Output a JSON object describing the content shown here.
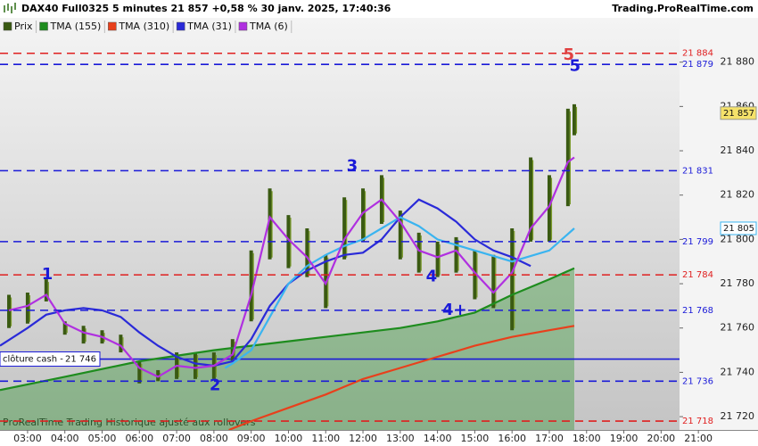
{
  "header": {
    "title": "DAX40 Full0325 5 minutes 21 857 +0,58 % 30 janv. 2025, 17:40:36",
    "source": "Trading.ProRealTime.com"
  },
  "footer": "ProRealTime Trading Historique ajusté aux rollovers",
  "chart_data": {
    "type": "range-bars",
    "xlim": [
      2.26,
      22.6
    ],
    "xticks": [
      {
        "value": 3,
        "label": "03:00"
      },
      {
        "value": 4,
        "label": "04:00"
      },
      {
        "value": 5,
        "label": "05:00"
      },
      {
        "value": 6,
        "label": "06:00"
      },
      {
        "value": 7,
        "label": "07:00"
      },
      {
        "value": 8,
        "label": "08:00"
      },
      {
        "value": 9,
        "label": "09:00"
      },
      {
        "value": 10,
        "label": "10:00"
      },
      {
        "value": 11,
        "label": "11:00"
      },
      {
        "value": 12,
        "label": "12:00"
      },
      {
        "value": 13,
        "label": "13:00"
      },
      {
        "value": 14,
        "label": "14:00"
      },
      {
        "value": 15,
        "label": "15:00"
      },
      {
        "value": 16,
        "label": "16:00"
      },
      {
        "value": 17,
        "label": "17:00"
      },
      {
        "value": 18,
        "label": "18:00"
      },
      {
        "value": 19,
        "label": "19:00"
      },
      {
        "value": 20,
        "label": "20:00"
      },
      {
        "value": 21,
        "label": "21:00"
      }
    ],
    "ylim": [
      21714,
      21900
    ],
    "yticks": [
      {
        "value": 21720,
        "label": "21 720"
      },
      {
        "value": 21740,
        "label": "21 740"
      },
      {
        "value": 21760,
        "label": "21 760"
      },
      {
        "value": 21780,
        "label": "21 780"
      },
      {
        "value": 21800,
        "label": "21 800"
      },
      {
        "value": 21820,
        "label": "21 820"
      },
      {
        "value": 21840,
        "label": "21 840"
      },
      {
        "value": 21860,
        "label": "21 860"
      },
      {
        "value": 21880,
        "label": "21 880"
      }
    ],
    "price": {
      "name": "Prix",
      "color": "#3a5a12",
      "x": [
        2.5,
        3,
        3.5,
        4,
        4.5,
        5,
        5.5,
        6,
        6.5,
        7,
        7.5,
        8,
        8.5,
        9,
        9.5,
        10,
        10.5,
        11,
        11.5,
        12,
        12.5,
        13,
        13.5,
        14,
        14.5,
        15,
        15.5,
        16,
        16.5,
        17,
        17.5,
        17.67
      ],
      "low": [
        21760,
        21762,
        21772,
        21757,
        21753,
        21753,
        21749,
        21735,
        21736,
        21737,
        21737,
        21737,
        21745,
        21763,
        21791,
        21787,
        21783,
        21769,
        21791,
        21799,
        21807,
        21791,
        21785,
        21783,
        21785,
        21773,
        21769,
        21759,
        21799,
        21799,
        21815,
        21847
      ],
      "high": [
        21775,
        21776,
        21782,
        21763,
        21761,
        21759,
        21757,
        21745,
        21741,
        21749,
        21749,
        21749,
        21755,
        21795,
        21823,
        21811,
        21805,
        21793,
        21819,
        21823,
        21829,
        21813,
        21803,
        21799,
        21801,
        21795,
        21793,
        21805,
        21837,
        21829,
        21859,
        21861
      ]
    },
    "series": [
      {
        "name": "TMA (155)",
        "color": "#1e8c1e",
        "fill": true,
        "x": [
          2.26,
          4,
          6,
          8,
          9,
          10,
          11,
          12,
          13,
          14,
          15,
          16,
          17,
          17.67
        ],
        "values": [
          21732,
          21738,
          21745,
          21750,
          21752,
          21754,
          21756,
          21758,
          21760,
          21763,
          21767,
          21775,
          21782,
          21787
        ]
      },
      {
        "name": "TMA (310)",
        "color": "#e8401c",
        "x": [
          8.4,
          9,
          10,
          11,
          12,
          13,
          14,
          15,
          16,
          17,
          17.67
        ],
        "values": [
          21714,
          21718,
          21724,
          21730,
          21737,
          21742,
          21747,
          21752,
          21756,
          21759,
          21761
        ]
      },
      {
        "name": "TMA (31)",
        "color": "#2a2ad8",
        "x": [
          2.26,
          3,
          3.5,
          4,
          4.5,
          5,
          5.5,
          6,
          6.5,
          7,
          7.5,
          8,
          8.5,
          9,
          9.5,
          10,
          10.5,
          11,
          11.5,
          12,
          12.5,
          13,
          13.5,
          14,
          14.5,
          15,
          15.5,
          16,
          16.5
        ],
        "values": [
          21752,
          21760,
          21766,
          21768,
          21769,
          21768,
          21765,
          21758,
          21752,
          21747,
          21744,
          21743,
          21745,
          21755,
          21770,
          21780,
          21786,
          21790,
          21793,
          21794,
          21800,
          21810,
          21818,
          21814,
          21808,
          21800,
          21795,
          21792,
          21788
        ]
      },
      {
        "color": "#3ab4f0",
        "x": [
          8.3,
          8.5,
          9,
          9.5,
          10,
          10.5,
          11,
          11.5,
          12,
          12.5,
          13,
          13.5,
          14,
          15,
          16,
          17,
          17.67
        ],
        "values": [
          21742,
          21744,
          21750,
          21765,
          21780,
          21788,
          21793,
          21797,
          21800,
          21805,
          21810,
          21806,
          21800,
          21795,
          21790,
          21795,
          21805
        ]
      },
      {
        "name": "TMA (6)",
        "color": "#b030e0",
        "x": [
          2.5,
          3,
          3.5,
          4,
          4.5,
          5,
          5.5,
          6,
          6.5,
          7,
          7.5,
          8,
          8.5,
          9,
          9.5,
          10,
          10.5,
          11,
          11.5,
          12,
          12.5,
          13,
          13.5,
          14,
          14.5,
          15,
          15.5,
          16,
          16.5,
          17,
          17.5,
          17.67
        ],
        "values": [
          21768,
          21770,
          21775,
          21762,
          21758,
          21756,
          21752,
          21742,
          21738,
          21743,
          21742,
          21743,
          21748,
          21775,
          21810,
          21800,
          21792,
          21780,
          21800,
          21812,
          21818,
          21808,
          21795,
          21792,
          21795,
          21785,
          21776,
          21785,
          21805,
          21815,
          21835,
          21837
        ]
      }
    ],
    "levels": [
      {
        "value": 21884,
        "label": "21 884",
        "color": "#e02020"
      },
      {
        "value": 21879,
        "label": "21 879",
        "color": "#1a1ad8"
      },
      {
        "value": 21831,
        "label": "21 831",
        "color": "#1a1ad8"
      },
      {
        "value": 21799,
        "label": "21 799",
        "color": "#1a1ad8"
      },
      {
        "value": 21784,
        "label": "21 784",
        "color": "#e02020"
      },
      {
        "value": 21768,
        "label": "21 768",
        "color": "#1a1ad8"
      },
      {
        "value": 21736,
        "label": "21 736",
        "color": "#1a1ad8"
      },
      {
        "value": 21718,
        "label": "21 718",
        "color": "#e02020"
      }
    ],
    "close_line": {
      "text": "clôture cash -",
      "value": 21746,
      "label": "21 746",
      "color": "#1a1ad8"
    },
    "last_price": {
      "value": 21857,
      "label": "21 857",
      "color": "#f5e26a"
    },
    "last_average": {
      "value": 21805,
      "label": "21 805",
      "color": "#3ab4f0"
    },
    "annotations": [
      {
        "text": "1",
        "x": 3.53,
        "y": 21784,
        "color": "#1a1ad8"
      },
      {
        "text": "2",
        "x": 8.03,
        "y": 21734,
        "color": "#1a1ad8"
      },
      {
        "text": "3",
        "x": 11.71,
        "y": 21833,
        "color": "#1a1ad8"
      },
      {
        "text": "4",
        "x": 13.84,
        "y": 21783,
        "color": "#1a1ad8"
      },
      {
        "text": "4+",
        "x": 14.46,
        "y": 21768,
        "color": "#1a1ad8"
      },
      {
        "text": "5",
        "x": 17.52,
        "y": 21883,
        "color": "#e04040"
      },
      {
        "text": "5",
        "x": 17.69,
        "y": 21878,
        "color": "#1a1ad8"
      }
    ]
  }
}
